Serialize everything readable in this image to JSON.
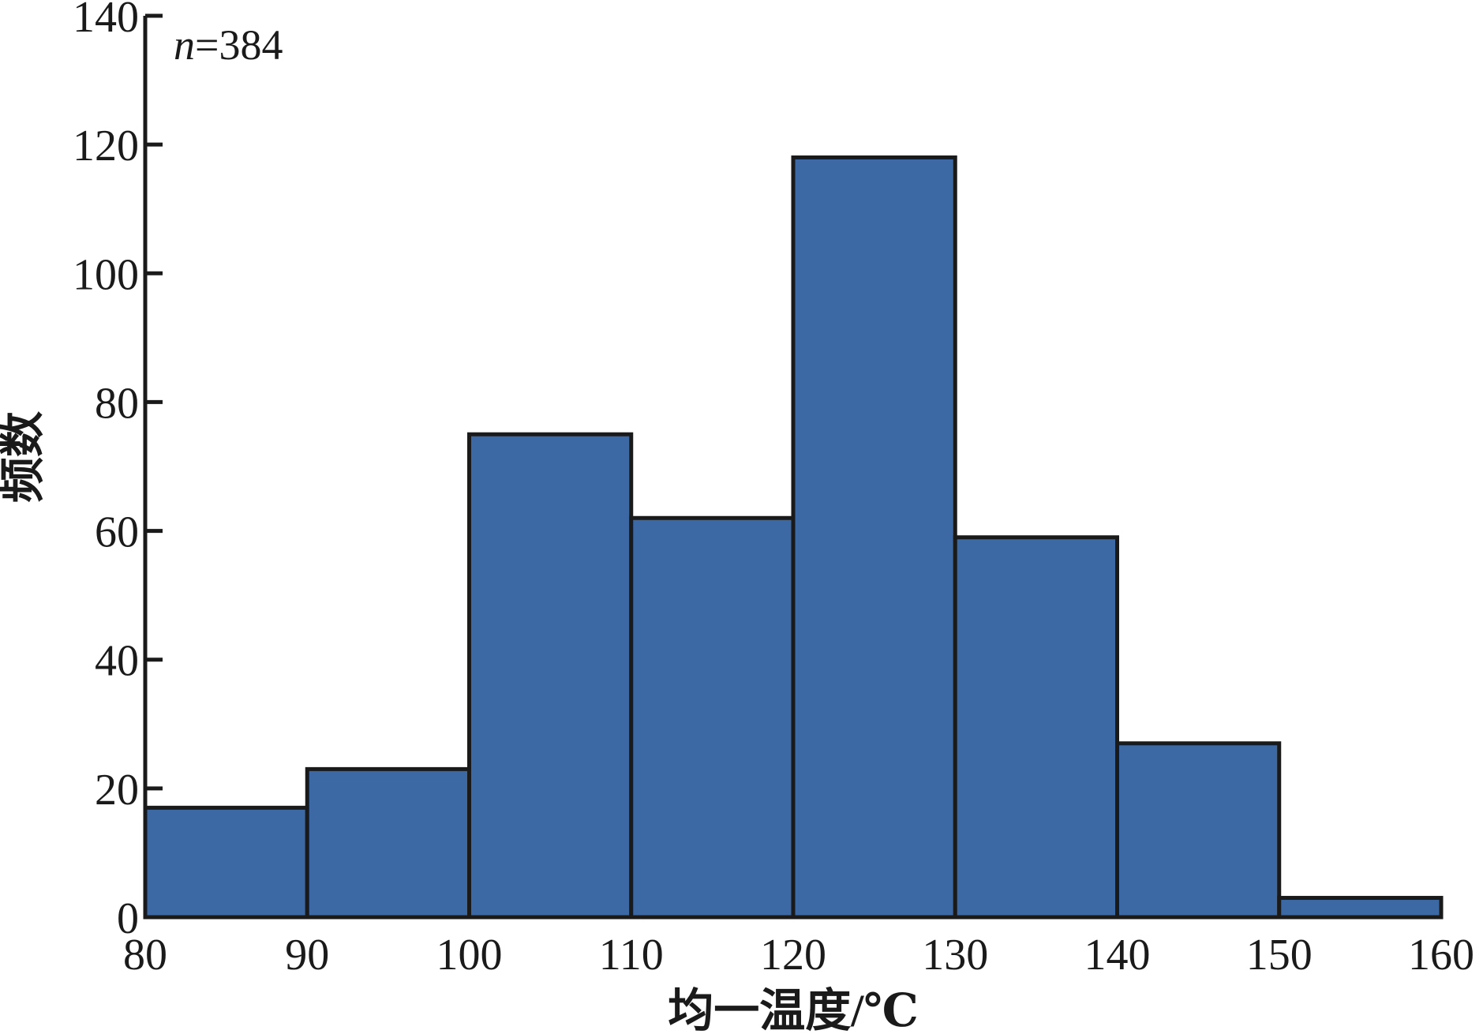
{
  "chart_data": {
    "type": "bar",
    "subtype": "histogram",
    "bins": [
      {
        "from": 80,
        "to": 90,
        "value": 17
      },
      {
        "from": 90,
        "to": 100,
        "value": 23
      },
      {
        "from": 100,
        "to": 110,
        "value": 75
      },
      {
        "from": 110,
        "to": 120,
        "value": 62
      },
      {
        "from": 120,
        "to": 130,
        "value": 118
      },
      {
        "from": 130,
        "to": 140,
        "value": 59
      },
      {
        "from": 140,
        "to": 150,
        "value": 27
      },
      {
        "from": 150,
        "to": 160,
        "value": 3
      }
    ],
    "xlabel": "均一温度/℃",
    "ylabel": "频数",
    "xlim": [
      80,
      160
    ],
    "ylim": [
      0,
      140
    ],
    "xticks": [
      80,
      90,
      100,
      110,
      120,
      130,
      140,
      150,
      160
    ],
    "yticks": [
      0,
      20,
      40,
      60,
      80,
      100,
      120,
      140
    ],
    "annotation": {
      "italic": "n",
      "rest": "=384"
    },
    "grid": false,
    "legend": "none",
    "colors": {
      "bar_fill": "#3c69a4",
      "bar_stroke": "#1a1a1a",
      "axis": "#1a1a1a"
    }
  }
}
